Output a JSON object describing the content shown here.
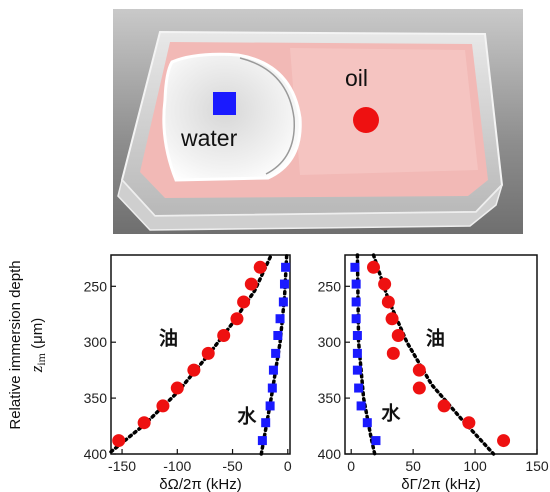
{
  "photo": {
    "water_label": "water",
    "oil_label": "oil",
    "colors": {
      "water_marker": "#1a1aff",
      "oil_marker": "#ee1111",
      "oil_tint": "#f2b9b6"
    }
  },
  "y_axis_label_line1": "Relative immersion depth",
  "y_axis_label_line2_var": "z",
  "y_axis_label_line2_sub": "im",
  "y_axis_label_line2_unit": " (μm)",
  "chart_data": [
    {
      "type": "scatter",
      "title": "",
      "xlabel": "δΩ/2π (kHz)",
      "ylabel": "Relative immersion depth z_im (μm)",
      "xlim": [
        -160,
        2
      ],
      "ylim": [
        400,
        222
      ],
      "x_ticks": [
        -150,
        -100,
        -50,
        0
      ],
      "y_ticks": [
        250,
        300,
        350,
        400
      ],
      "grid": false,
      "annotations": [
        {
          "text": "油",
          "x": -108,
          "y": 302
        },
        {
          "text": "水",
          "x": -37,
          "y": 372
        }
      ],
      "series": [
        {
          "marker": "circle",
          "color": "#ee1111",
          "points": [
            {
              "x": -153,
              "y": 388
            },
            {
              "x": -130,
              "y": 372
            },
            {
              "x": -113,
              "y": 357
            },
            {
              "x": -100,
              "y": 341
            },
            {
              "x": -85,
              "y": 325
            },
            {
              "x": -72,
              "y": 310
            },
            {
              "x": -58,
              "y": 294
            },
            {
              "x": -46,
              "y": 279
            },
            {
              "x": -40,
              "y": 264
            },
            {
              "x": -33,
              "y": 248
            },
            {
              "x": -25,
              "y": 233
            }
          ]
        },
        {
          "marker": "square",
          "color": "#1a1aff",
          "points": [
            {
              "x": -23,
              "y": 388
            },
            {
              "x": -20,
              "y": 372
            },
            {
              "x": -16,
              "y": 357
            },
            {
              "x": -14,
              "y": 341
            },
            {
              "x": -13,
              "y": 325
            },
            {
              "x": -11,
              "y": 310
            },
            {
              "x": -9,
              "y": 294
            },
            {
              "x": -7,
              "y": 279
            },
            {
              "x": -4,
              "y": 264
            },
            {
              "x": -3,
              "y": 248
            },
            {
              "x": -2,
              "y": 233
            }
          ]
        }
      ],
      "fit_lines": [
        {
          "style": "dotted",
          "color": "#000000",
          "points": [
            [
              -160,
              398
            ],
            [
              -130,
              374
            ],
            [
              -100,
              345
            ],
            [
              -70,
              309
            ],
            [
              -50,
              283
            ],
            [
              -30,
              254
            ],
            [
              -15,
              222
            ]
          ]
        },
        {
          "style": "dotted",
          "color": "#000000",
          "points": [
            [
              -24,
              400
            ],
            [
              -15,
              350
            ],
            [
              -7,
              300
            ],
            [
              -3,
              260
            ],
            [
              -1,
              222
            ]
          ]
        }
      ]
    },
    {
      "type": "scatter",
      "title": "",
      "xlabel": "δΓ/2π (kHz)",
      "ylabel": "",
      "xlim": [
        -5,
        150
      ],
      "ylim": [
        400,
        222
      ],
      "x_ticks": [
        0,
        50,
        100,
        150
      ],
      "y_ticks": [
        250,
        300,
        350,
        400
      ],
      "grid": false,
      "annotations": [
        {
          "text": "油",
          "x": 68,
          "y": 302
        },
        {
          "text": "水",
          "x": 32,
          "y": 369
        }
      ],
      "series": [
        {
          "marker": "circle",
          "color": "#ee1111",
          "points": [
            {
              "x": 18,
              "y": 233
            },
            {
              "x": 27,
              "y": 248
            },
            {
              "x": 30,
              "y": 264
            },
            {
              "x": 33,
              "y": 279
            },
            {
              "x": 38,
              "y": 294
            },
            {
              "x": 34,
              "y": 310
            },
            {
              "x": 55,
              "y": 325
            },
            {
              "x": 55,
              "y": 341
            },
            {
              "x": 75,
              "y": 357
            },
            {
              "x": 95,
              "y": 372
            },
            {
              "x": 123,
              "y": 388
            }
          ]
        },
        {
          "marker": "square",
          "color": "#1a1aff",
          "points": [
            {
              "x": 3,
              "y": 233
            },
            {
              "x": 4,
              "y": 248
            },
            {
              "x": 4,
              "y": 264
            },
            {
              "x": 4,
              "y": 279
            },
            {
              "x": 5,
              "y": 294
            },
            {
              "x": 5,
              "y": 310
            },
            {
              "x": 5,
              "y": 325
            },
            {
              "x": 6,
              "y": 341
            },
            {
              "x": 8,
              "y": 357
            },
            {
              "x": 13,
              "y": 372
            },
            {
              "x": 20,
              "y": 388
            }
          ]
        }
      ],
      "fit_lines": [
        {
          "style": "dotted",
          "color": "#000000",
          "points": [
            [
              18,
              222
            ],
            [
              30,
              262
            ],
            [
              45,
              300
            ],
            [
              65,
              338
            ],
            [
              90,
              370
            ],
            [
              115,
              400
            ]
          ]
        },
        {
          "style": "dotted",
          "color": "#000000",
          "points": [
            [
              5,
              222
            ],
            [
              6,
              300
            ],
            [
              10,
              350
            ],
            [
              16,
              385
            ],
            [
              19,
              400
            ]
          ]
        }
      ]
    }
  ]
}
